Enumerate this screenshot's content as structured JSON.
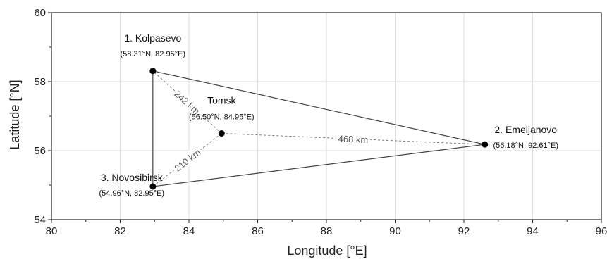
{
  "chart_data": {
    "type": "scatter",
    "xlabel": "Longitude [°E]",
    "ylabel": "Latitude [°N]",
    "xlim": [
      80,
      96
    ],
    "ylim": [
      54,
      60
    ],
    "x_ticks": [
      "80",
      "82",
      "84",
      "86",
      "88",
      "90",
      "92",
      "94",
      "96"
    ],
    "y_ticks": [
      "54",
      "56",
      "58",
      "60"
    ],
    "grid": true,
    "points": [
      {
        "name": "1. Kolpasevo",
        "coords": "(58.31°N, 82.95°E)",
        "lon": 82.95,
        "lat": 58.31
      },
      {
        "name": "2. Emeljanovo",
        "coords": "(56.18°N, 92.61°E)",
        "lon": 92.61,
        "lat": 56.18
      },
      {
        "name": "3. Novosibirsk",
        "coords": "(54.96°N, 82.95°E)",
        "lon": 82.95,
        "lat": 54.96
      },
      {
        "name": "Tomsk",
        "coords": "(56.50°N, 84.95°E)",
        "lon": 84.95,
        "lat": 56.5,
        "color": "#ff0000"
      }
    ],
    "triangle": [
      "1. Kolpasevo",
      "2. Emeljanovo",
      "3. Novosibirsk"
    ],
    "distances": [
      {
        "from": "Tomsk",
        "to": "1. Kolpasevo",
        "label": "242 km"
      },
      {
        "from": "Tomsk",
        "to": "2. Emeljanovo",
        "label": "468 km"
      },
      {
        "from": "Tomsk",
        "to": "3. Novosibirsk",
        "label": "210 km"
      }
    ],
    "colors": {
      "axis": "#222222",
      "grid": "#dddddd",
      "line": "#444444",
      "dashed": "#777777",
      "marker": "#000000",
      "highlight": "#ff0000"
    }
  }
}
